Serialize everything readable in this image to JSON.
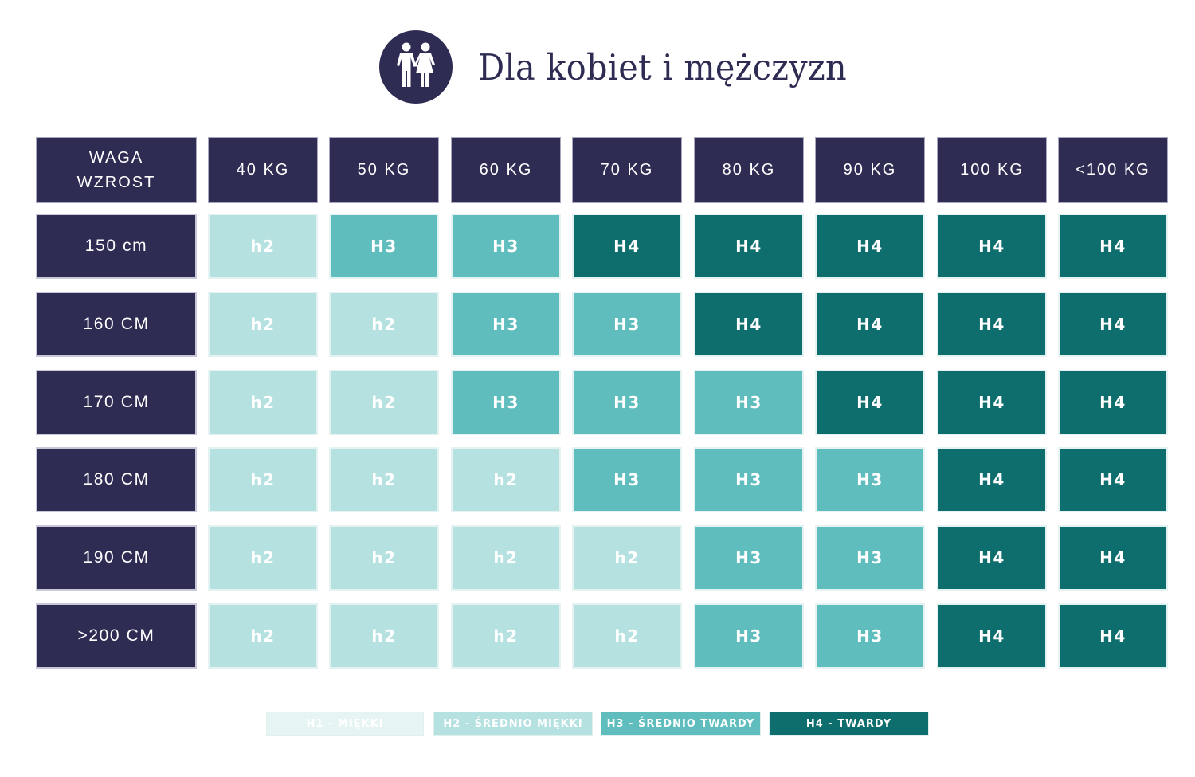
{
  "header": {
    "title": "Dla kobiet i mężczyzn",
    "icon": "couple-icon"
  },
  "colors": {
    "navy": "#2f2c54",
    "h1": "#e6f5f4",
    "h2": "#b5e1e0",
    "h3": "#5fbdbd",
    "h4": "#0e6e6e"
  },
  "table": {
    "corner_line1": "WAGA",
    "corner_line2": "WZROST",
    "columns": [
      "40 KG",
      "50 KG",
      "60 KG",
      "70 KG",
      "80 KG",
      "90 KG",
      "100 KG",
      "<100 KG"
    ],
    "rows": [
      {
        "label": "150 cm",
        "cells": [
          "h2",
          "H3",
          "H3",
          "H4",
          "H4",
          "H4",
          "H4",
          "H4"
        ]
      },
      {
        "label": "160 CM",
        "cells": [
          "h2",
          "h2",
          "H3",
          "H3",
          "H4",
          "H4",
          "H4",
          "H4"
        ]
      },
      {
        "label": "170 CM",
        "cells": [
          "h2",
          "h2",
          "H3",
          "H3",
          "H3",
          "H4",
          "H4",
          "H4"
        ]
      },
      {
        "label": "180 CM",
        "cells": [
          "h2",
          "h2",
          "h2",
          "H3",
          "H3",
          "H3",
          "H4",
          "H4"
        ]
      },
      {
        "label": "190 CM",
        "cells": [
          "h2",
          "h2",
          "h2",
          "h2",
          "H3",
          "H3",
          "H4",
          "H4"
        ]
      },
      {
        "label": ">200 CM",
        "cells": [
          "h2",
          "h2",
          "h2",
          "h2",
          "H3",
          "H3",
          "H4",
          "H4"
        ]
      }
    ]
  },
  "legend": [
    {
      "label": "H1 - MIĘKKI",
      "color": "#e6f5f4"
    },
    {
      "label": "H2 - ŚREDNIO MIĘKKI",
      "color": "#b5e1e0"
    },
    {
      "label": "H3 - ŚREDNIO TWARDY",
      "color": "#5fbdbd"
    },
    {
      "label": "H4 - TWARDY",
      "color": "#0e6e6e"
    }
  ],
  "chart_data": {
    "type": "heatmap",
    "title": "Dla kobiet i mężczyzn",
    "xlabel": "WAGA",
    "ylabel": "WZROST",
    "x": [
      "40 KG",
      "50 KG",
      "60 KG",
      "70 KG",
      "80 KG",
      "90 KG",
      "100 KG",
      "<100 KG"
    ],
    "y": [
      "150 cm",
      "160 CM",
      "170 CM",
      "180 CM",
      "190 CM",
      ">200 CM"
    ],
    "values": [
      [
        "h2",
        "H3",
        "H3",
        "H4",
        "H4",
        "H4",
        "H4",
        "H4"
      ],
      [
        "h2",
        "h2",
        "H3",
        "H3",
        "H4",
        "H4",
        "H4",
        "H4"
      ],
      [
        "h2",
        "h2",
        "H3",
        "H3",
        "H3",
        "H4",
        "H4",
        "H4"
      ],
      [
        "h2",
        "h2",
        "h2",
        "H3",
        "H3",
        "H3",
        "H4",
        "H4"
      ],
      [
        "h2",
        "h2",
        "h2",
        "h2",
        "H3",
        "H3",
        "H4",
        "H4"
      ],
      [
        "h2",
        "h2",
        "h2",
        "h2",
        "H3",
        "H3",
        "H4",
        "H4"
      ]
    ],
    "legend": [
      "H1 - MIĘKKI",
      "H2 - ŚREDNIO MIĘKKI",
      "H3 - ŚREDNIO TWARDY",
      "H4 - TWARDY"
    ],
    "legend_position": "bottom"
  }
}
